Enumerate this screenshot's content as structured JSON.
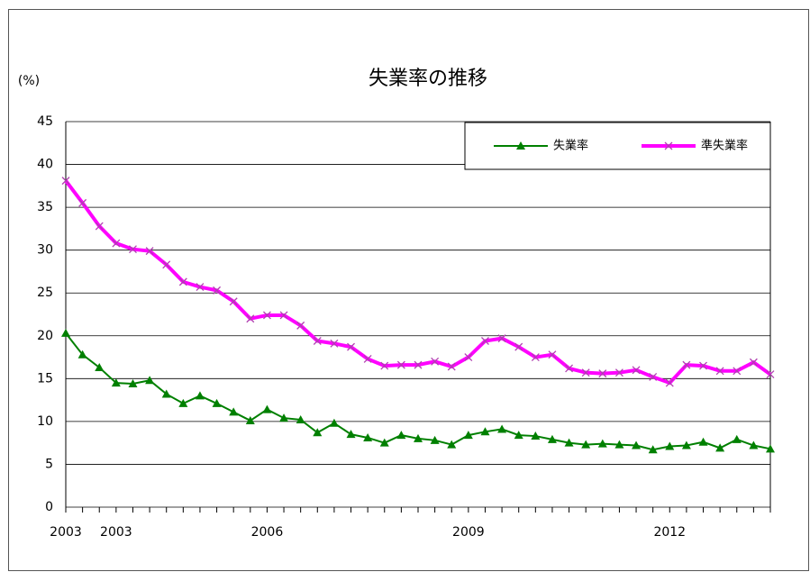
{
  "chart_data": {
    "type": "line",
    "title": "失業率の推移",
    "y_label": "(%)",
    "categories": [
      "2003",
      null,
      null,
      "2003",
      null,
      null,
      null,
      null,
      null,
      null,
      null,
      null,
      "2006",
      null,
      null,
      null,
      null,
      null,
      null,
      null,
      null,
      null,
      null,
      null,
      "2009",
      null,
      null,
      null,
      null,
      null,
      null,
      null,
      null,
      null,
      null,
      null,
      "2012",
      null,
      null,
      null,
      null,
      null,
      null
    ],
    "series": [
      {
        "name": "失業率",
        "color": "#008000",
        "marker": "triangle",
        "values": [
          20.3,
          17.8,
          16.3,
          14.5,
          14.4,
          14.8,
          13.2,
          12.1,
          13.0,
          12.1,
          11.1,
          10.1,
          11.4,
          10.4,
          10.2,
          8.7,
          9.8,
          8.5,
          8.1,
          7.5,
          8.4,
          8.0,
          7.8,
          7.3,
          8.4,
          8.8,
          9.1,
          8.4,
          8.3,
          7.9,
          7.5,
          7.3,
          7.4,
          7.3,
          7.2,
          6.7,
          7.1,
          7.2,
          7.6,
          6.9,
          7.9,
          7.2,
          6.8
        ]
      },
      {
        "name": "準失業率",
        "color": "#ff00ff",
        "marker": "x",
        "values": [
          38.1,
          35.5,
          32.8,
          30.8,
          30.1,
          29.9,
          28.3,
          26.3,
          25.7,
          25.3,
          24.0,
          22.0,
          22.4,
          22.4,
          21.2,
          19.4,
          19.1,
          18.7,
          17.3,
          16.5,
          16.6,
          16.6,
          17.0,
          16.4,
          17.5,
          19.4,
          19.7,
          18.7,
          17.5,
          17.8,
          16.2,
          15.7,
          15.6,
          15.7,
          16.0,
          15.2,
          14.5,
          16.6,
          16.5,
          15.9,
          15.9,
          16.9,
          15.5
        ]
      }
    ],
    "ylim": [
      0,
      45
    ],
    "yticks": [
      0,
      5,
      10,
      15,
      20,
      25,
      30,
      35,
      40,
      45
    ],
    "grid": true,
    "legend": "top-right"
  }
}
